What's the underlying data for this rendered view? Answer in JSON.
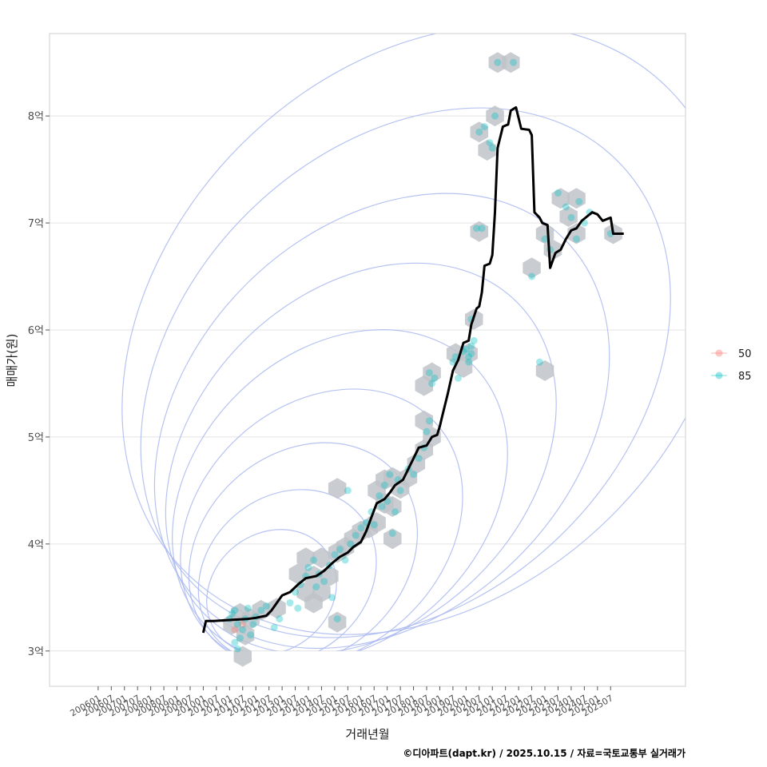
{
  "chart_data": {
    "type": "scatter",
    "xlabel": "거래년월",
    "ylabel": "매매가(원)",
    "caption": "©디아파트(dapt.kr) / 2025.10.15 / 자료=국토교통부 실거래가",
    "x_ticks": [
      "200601",
      "200607",
      "200701",
      "200707",
      "200801",
      "200807",
      "200901",
      "200907",
      "201001",
      "201007",
      "201101",
      "201107",
      "201201",
      "201207",
      "201301",
      "201307",
      "201401",
      "201407",
      "201501",
      "201507",
      "201601",
      "201607",
      "201701",
      "201707",
      "201801",
      "201807",
      "201901",
      "201907",
      "202001",
      "202007",
      "202101",
      "202107",
      "202201",
      "202207",
      "202301",
      "202307",
      "202401",
      "202407",
      "202501",
      "202507"
    ],
    "y_ticks": [
      {
        "value": 3,
        "label": "3억"
      },
      {
        "value": 4,
        "label": "4억"
      },
      {
        "value": 5,
        "label": "5억"
      },
      {
        "value": 6,
        "label": "6억"
      },
      {
        "value": 7,
        "label": "7억"
      },
      {
        "value": 8,
        "label": "8억"
      }
    ],
    "xlim": [
      2004.15,
      2028.35
    ],
    "ylim": [
      2.67,
      8.77
    ],
    "legend": {
      "position": "right",
      "entries": [
        {
          "name": "50",
          "color": "#F8766D"
        },
        {
          "name": "85",
          "color": "#00BFC4"
        }
      ]
    },
    "colors": {
      "trend": "#000000",
      "hex": "#BFC3C9",
      "contour": "#A9B8F0",
      "grid": "#E3E3E3"
    },
    "series": [
      {
        "name": "50",
        "points": [
          [
            2011.2,
            3.2
          ],
          [
            2011.5,
            3.25
          ]
        ]
      },
      {
        "name": "85",
        "points": [
          [
            2011.0,
            3.3
          ],
          [
            2011.1,
            3.35
          ],
          [
            2011.2,
            3.38
          ],
          [
            2011.3,
            3.25
          ],
          [
            2011.4,
            3.12
          ],
          [
            2011.5,
            3.2
          ],
          [
            2011.6,
            3.3
          ],
          [
            2011.7,
            3.4
          ],
          [
            2011.8,
            3.15
          ],
          [
            2011.2,
            3.08
          ],
          [
            2011.3,
            3.02
          ],
          [
            2011.9,
            3.25
          ],
          [
            2012.0,
            3.32
          ],
          [
            2012.2,
            3.38
          ],
          [
            2012.4,
            3.42
          ],
          [
            2012.7,
            3.22
          ],
          [
            2012.9,
            3.3
          ],
          [
            2013.3,
            3.45
          ],
          [
            2013.5,
            3.55
          ],
          [
            2013.7,
            3.62
          ],
          [
            2013.9,
            3.7
          ],
          [
            2014.0,
            3.78
          ],
          [
            2014.2,
            3.85
          ],
          [
            2014.4,
            3.72
          ],
          [
            2014.6,
            3.65
          ],
          [
            2014.8,
            3.8
          ],
          [
            2015.0,
            3.9
          ],
          [
            2015.2,
            3.95
          ],
          [
            2015.4,
            3.85
          ],
          [
            2015.1,
            3.3
          ],
          [
            2013.6,
            3.4
          ],
          [
            2014.3,
            3.6
          ],
          [
            2014.9,
            3.5
          ],
          [
            2015.6,
            4.0
          ],
          [
            2015.8,
            4.08
          ],
          [
            2016.0,
            4.15
          ],
          [
            2016.2,
            4.2
          ],
          [
            2016.4,
            4.3
          ],
          [
            2016.5,
            4.18
          ],
          [
            2015.5,
            4.5
          ],
          [
            2016.7,
            4.45
          ],
          [
            2016.9,
            4.55
          ],
          [
            2017.0,
            4.4
          ],
          [
            2017.1,
            4.65
          ],
          [
            2017.3,
            4.3
          ],
          [
            2017.4,
            4.6
          ],
          [
            2017.5,
            4.5
          ],
          [
            2016.8,
            4.35
          ],
          [
            2017.2,
            4.1
          ],
          [
            2017.8,
            4.7
          ],
          [
            2018.0,
            4.65
          ],
          [
            2018.2,
            4.8
          ],
          [
            2018.4,
            4.9
          ],
          [
            2018.5,
            5.05
          ],
          [
            2018.6,
            5.15
          ],
          [
            2018.7,
            5.5
          ],
          [
            2018.8,
            5.55
          ],
          [
            2018.6,
            5.6
          ],
          [
            2019.5,
            5.7
          ],
          [
            2019.6,
            5.75
          ],
          [
            2019.7,
            5.55
          ],
          [
            2019.9,
            5.8
          ],
          [
            2020.0,
            5.82
          ],
          [
            2020.1,
            5.75
          ],
          [
            2020.2,
            5.85
          ],
          [
            2020.3,
            5.9
          ],
          [
            2020.1,
            5.7
          ],
          [
            2020.2,
            5.78
          ],
          [
            2020.2,
            6.1
          ],
          [
            2020.4,
            6.95
          ],
          [
            2020.6,
            6.95
          ],
          [
            2020.5,
            7.85
          ],
          [
            2020.7,
            7.9
          ],
          [
            2020.9,
            7.75
          ],
          [
            2021.0,
            7.7
          ],
          [
            2021.1,
            8.0
          ],
          [
            2021.2,
            8.5
          ],
          [
            2021.8,
            8.5
          ],
          [
            2022.5,
            6.5
          ],
          [
            2022.8,
            5.7
          ],
          [
            2023.0,
            6.85
          ],
          [
            2023.2,
            6.75
          ],
          [
            2023.5,
            7.28
          ],
          [
            2023.8,
            7.15
          ],
          [
            2024.0,
            7.05
          ],
          [
            2024.2,
            6.85
          ],
          [
            2024.3,
            7.2
          ],
          [
            2024.5,
            7.0
          ],
          [
            2024.7,
            7.1
          ],
          [
            2025.5,
            6.9
          ]
        ]
      }
    ],
    "trend": [
      [
        2010.0,
        3.17
      ],
      [
        2010.1,
        3.28
      ],
      [
        2010.4,
        3.28
      ],
      [
        2011.0,
        3.29
      ],
      [
        2011.7,
        3.3
      ],
      [
        2012.0,
        3.31
      ],
      [
        2012.4,
        3.33
      ],
      [
        2012.6,
        3.38
      ],
      [
        2012.8,
        3.45
      ],
      [
        2013.0,
        3.52
      ],
      [
        2013.3,
        3.55
      ],
      [
        2013.6,
        3.62
      ],
      [
        2013.9,
        3.68
      ],
      [
        2014.3,
        3.7
      ],
      [
        2014.6,
        3.75
      ],
      [
        2014.9,
        3.82
      ],
      [
        2015.2,
        3.88
      ],
      [
        2015.5,
        3.92
      ],
      [
        2015.7,
        3.97
      ],
      [
        2016.0,
        4.02
      ],
      [
        2016.2,
        4.12
      ],
      [
        2016.4,
        4.25
      ],
      [
        2016.6,
        4.38
      ],
      [
        2016.9,
        4.42
      ],
      [
        2017.1,
        4.48
      ],
      [
        2017.3,
        4.55
      ],
      [
        2017.6,
        4.6
      ],
      [
        2017.8,
        4.7
      ],
      [
        2018.0,
        4.8
      ],
      [
        2018.2,
        4.9
      ],
      [
        2018.5,
        4.92
      ],
      [
        2018.7,
        5.0
      ],
      [
        2018.9,
        5.02
      ],
      [
        2019.0,
        5.1
      ],
      [
        2019.1,
        5.2
      ],
      [
        2019.3,
        5.4
      ],
      [
        2019.5,
        5.62
      ],
      [
        2019.7,
        5.72
      ],
      [
        2019.9,
        5.88
      ],
      [
        2020.1,
        5.9
      ],
      [
        2020.2,
        6.05
      ],
      [
        2020.4,
        6.2
      ],
      [
        2020.5,
        6.22
      ],
      [
        2020.6,
        6.35
      ],
      [
        2020.7,
        6.6
      ],
      [
        2020.9,
        6.62
      ],
      [
        2021.0,
        6.7
      ],
      [
        2021.1,
        7.1
      ],
      [
        2021.2,
        7.7
      ],
      [
        2021.4,
        7.9
      ],
      [
        2021.6,
        7.92
      ],
      [
        2021.7,
        8.05
      ],
      [
        2021.9,
        8.08
      ],
      [
        2022.1,
        7.88
      ],
      [
        2022.4,
        7.87
      ],
      [
        2022.5,
        7.82
      ],
      [
        2022.6,
        7.1
      ],
      [
        2022.8,
        7.05
      ],
      [
        2022.9,
        7.0
      ],
      [
        2023.1,
        6.98
      ],
      [
        2023.2,
        6.58
      ],
      [
        2023.4,
        6.72
      ],
      [
        2023.6,
        6.75
      ],
      [
        2023.8,
        6.85
      ],
      [
        2024.0,
        6.93
      ],
      [
        2024.2,
        6.95
      ],
      [
        2024.4,
        7.02
      ],
      [
        2024.6,
        7.06
      ],
      [
        2024.8,
        7.1
      ],
      [
        2025.0,
        7.08
      ],
      [
        2025.2,
        7.02
      ],
      [
        2025.4,
        7.04
      ],
      [
        2025.5,
        7.05
      ],
      [
        2025.6,
        6.9
      ],
      [
        2025.8,
        6.9
      ],
      [
        2026.0,
        6.9
      ]
    ],
    "hexbins": [
      [
        2011.1,
        3.25
      ],
      [
        2011.4,
        3.35
      ],
      [
        2011.6,
        3.15
      ],
      [
        2011.8,
        3.3
      ],
      [
        2011.5,
        2.95
      ],
      [
        2012.2,
        3.38
      ],
      [
        2012.8,
        3.4
      ],
      [
        2013.6,
        3.72
      ],
      [
        2013.9,
        3.87
      ],
      [
        2014.2,
        3.7
      ],
      [
        2014.5,
        3.87
      ],
      [
        2014.8,
        3.7
      ],
      [
        2015.1,
        3.92
      ],
      [
        2015.4,
        3.97
      ],
      [
        2013.9,
        3.55
      ],
      [
        2014.5,
        3.55
      ],
      [
        2014.2,
        3.45
      ],
      [
        2015.1,
        3.27
      ],
      [
        2015.1,
        4.52
      ],
      [
        2016.0,
        4.12
      ],
      [
        2015.7,
        4.05
      ],
      [
        2016.3,
        4.15
      ],
      [
        2016.6,
        4.5
      ],
      [
        2016.9,
        4.6
      ],
      [
        2017.2,
        4.62
      ],
      [
        2017.5,
        4.52
      ],
      [
        2016.9,
        4.38
      ],
      [
        2017.2,
        4.35
      ],
      [
        2016.6,
        4.2
      ],
      [
        2017.2,
        4.05
      ],
      [
        2017.8,
        4.62
      ],
      [
        2018.1,
        4.75
      ],
      [
        2018.4,
        4.88
      ],
      [
        2018.4,
        5.15
      ],
      [
        2018.7,
        5.0
      ],
      [
        2018.4,
        5.48
      ],
      [
        2018.7,
        5.6
      ],
      [
        2019.6,
        5.78
      ],
      [
        2019.9,
        5.65
      ],
      [
        2020.1,
        5.78
      ],
      [
        2020.3,
        6.1
      ],
      [
        2020.5,
        6.92
      ],
      [
        2020.5,
        7.85
      ],
      [
        2020.8,
        7.68
      ],
      [
        2021.1,
        8.0
      ],
      [
        2021.2,
        8.5
      ],
      [
        2021.7,
        8.5
      ],
      [
        2022.5,
        6.58
      ],
      [
        2023.0,
        5.62
      ],
      [
        2023.0,
        6.9
      ],
      [
        2023.3,
        6.75
      ],
      [
        2023.6,
        7.23
      ],
      [
        2023.9,
        7.06
      ],
      [
        2024.2,
        7.23
      ],
      [
        2024.2,
        6.9
      ],
      [
        2025.6,
        6.9
      ]
    ],
    "contours": [
      {
        "cx": 2012.6,
        "cy": 3.55,
        "rx": 2.6,
        "ry": 0.55,
        "angle": -38
      },
      {
        "cx": 2013.2,
        "cy": 3.7,
        "rx": 3.6,
        "ry": 0.75,
        "angle": -40
      },
      {
        "cx": 2013.8,
        "cy": 3.9,
        "rx": 4.7,
        "ry": 0.95,
        "angle": -42
      },
      {
        "cx": 2014.5,
        "cy": 4.15,
        "rx": 5.9,
        "ry": 1.15,
        "angle": -43
      },
      {
        "cx": 2015.2,
        "cy": 4.45,
        "rx": 7.1,
        "ry": 1.35,
        "angle": -44
      },
      {
        "cx": 2016.0,
        "cy": 4.8,
        "rx": 8.4,
        "ry": 1.55,
        "angle": -45
      },
      {
        "cx": 2016.8,
        "cy": 5.15,
        "rx": 9.8,
        "ry": 1.8,
        "angle": -45
      },
      {
        "cx": 2017.7,
        "cy": 5.6,
        "rx": 11.4,
        "ry": 2.1,
        "angle": -45
      },
      {
        "cx": 2018.5,
        "cy": 6.0,
        "rx": 13.0,
        "ry": 2.45,
        "angle": -45
      }
    ]
  }
}
